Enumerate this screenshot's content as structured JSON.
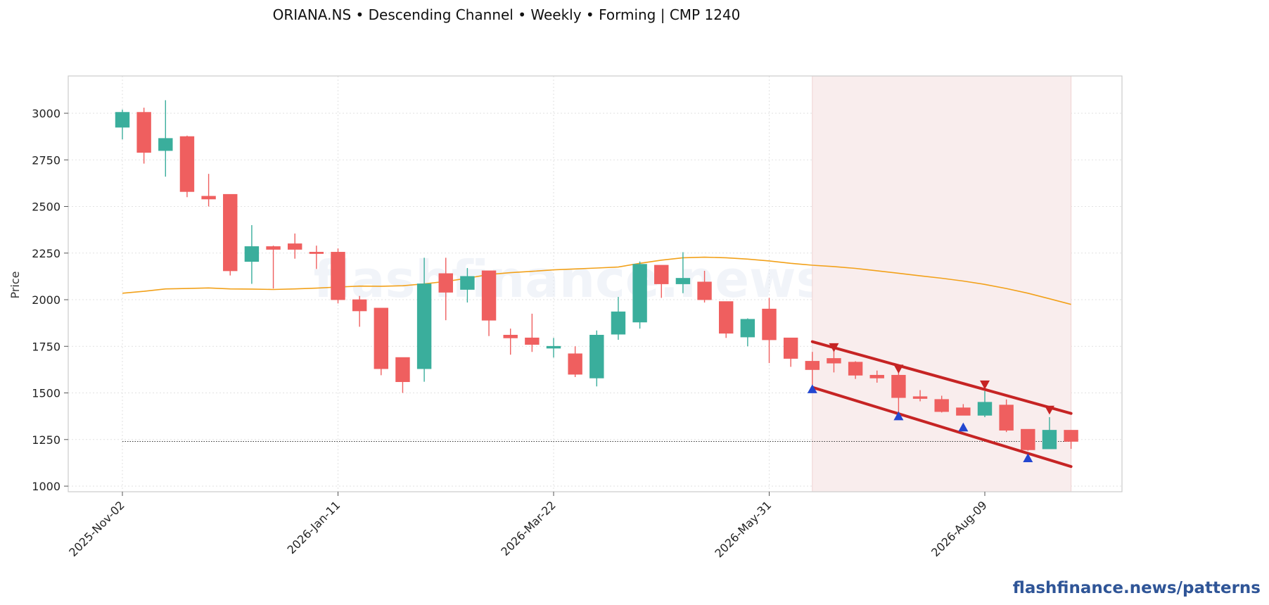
{
  "title": "ORIANA.NS  •  Descending Channel  •  Weekly  •  Forming  |  CMP 1240",
  "watermark": "flashfinance.news",
  "footer": "flashfinance.news/patterns",
  "colors": {
    "up": "#3aae9c",
    "down": "#ef5f5f",
    "ma": "#f2a11a",
    "channel": "#c62424",
    "pivot_high": "#c62424",
    "pivot_low": "#2346d0",
    "highlight": "#f9eded",
    "cmp_line": "#333333"
  },
  "chart_data": {
    "type": "candlestick",
    "ylabel": "Price",
    "xlabel": "",
    "ylim": [
      970,
      3200
    ],
    "yticks": [
      1000,
      1250,
      1500,
      1750,
      2000,
      2250,
      2500,
      2750,
      3000
    ],
    "xticks": [
      "2025-Nov-02",
      "2026-Jan-11",
      "2026-Mar-22",
      "2026-May-31",
      "2026-Aug-09"
    ],
    "xtick_index": [
      0,
      10,
      20,
      30,
      40
    ],
    "grid": true,
    "candles": [
      {
        "date": "2025-Nov-02",
        "open": 2925,
        "high": 3020,
        "low": 2860,
        "close": 3005
      },
      {
        "date": "2025-Nov-09",
        "open": 3005,
        "high": 3030,
        "low": 2730,
        "close": 2790
      },
      {
        "date": "2025-Nov-16",
        "open": 2800,
        "high": 3070,
        "low": 2660,
        "close": 2865
      },
      {
        "date": "2025-Nov-23",
        "open": 2875,
        "high": 2880,
        "low": 2550,
        "close": 2580
      },
      {
        "date": "2025-Nov-30",
        "open": 2555,
        "high": 2675,
        "low": 2500,
        "close": 2540
      },
      {
        "date": "2025-Dec-07",
        "open": 2565,
        "high": 2565,
        "low": 2130,
        "close": 2155
      },
      {
        "date": "2025-Dec-14",
        "open": 2205,
        "high": 2400,
        "low": 2085,
        "close": 2285
      },
      {
        "date": "2025-Dec-21",
        "open": 2285,
        "high": 2290,
        "low": 2060,
        "close": 2270
      },
      {
        "date": "2025-Dec-28",
        "open": 2300,
        "high": 2355,
        "low": 2220,
        "close": 2270
      },
      {
        "date": "2026-Jan-04",
        "open": 2255,
        "high": 2290,
        "low": 2165,
        "close": 2250
      },
      {
        "date": "2026-Jan-11",
        "open": 2255,
        "high": 2275,
        "low": 1980,
        "close": 2000
      },
      {
        "date": "2026-Jan-18",
        "open": 2000,
        "high": 2020,
        "low": 1855,
        "close": 1940
      },
      {
        "date": "2026-Jan-25",
        "open": 1955,
        "high": 1955,
        "low": 1595,
        "close": 1630
      },
      {
        "date": "2026-Feb-01",
        "open": 1690,
        "high": 1690,
        "low": 1500,
        "close": 1560
      },
      {
        "date": "2026-Feb-08",
        "open": 1630,
        "high": 2225,
        "low": 1560,
        "close": 2085
      },
      {
        "date": "2026-Feb-15",
        "open": 2140,
        "high": 2225,
        "low": 1890,
        "close": 2040
      },
      {
        "date": "2026-Feb-22",
        "open": 2055,
        "high": 2170,
        "low": 1985,
        "close": 2125
      },
      {
        "date": "2026-Mar-01",
        "open": 2155,
        "high": 2155,
        "low": 1805,
        "close": 1890
      },
      {
        "date": "2026-Mar-08",
        "open": 1810,
        "high": 1845,
        "low": 1705,
        "close": 1795
      },
      {
        "date": "2026-Mar-15",
        "open": 1795,
        "high": 1925,
        "low": 1720,
        "close": 1760
      },
      {
        "date": "2026-Mar-22",
        "open": 1740,
        "high": 1795,
        "low": 1690,
        "close": 1750
      },
      {
        "date": "2026-Mar-29",
        "open": 1710,
        "high": 1750,
        "low": 1585,
        "close": 1600
      },
      {
        "date": "2026-Apr-05",
        "open": 1580,
        "high": 1835,
        "low": 1535,
        "close": 1810
      },
      {
        "date": "2026-Apr-12",
        "open": 1815,
        "high": 2015,
        "low": 1785,
        "close": 1935
      },
      {
        "date": "2026-Apr-19",
        "open": 1880,
        "high": 2205,
        "low": 1845,
        "close": 2190
      },
      {
        "date": "2026-Apr-26",
        "open": 2185,
        "high": 2185,
        "low": 2010,
        "close": 2085
      },
      {
        "date": "2026-May-03",
        "open": 2085,
        "high": 2255,
        "low": 2035,
        "close": 2115
      },
      {
        "date": "2026-May-10",
        "open": 2095,
        "high": 2155,
        "low": 1985,
        "close": 2000
      },
      {
        "date": "2026-May-17",
        "open": 1990,
        "high": 1990,
        "low": 1795,
        "close": 1820
      },
      {
        "date": "2026-May-24",
        "open": 1800,
        "high": 1900,
        "low": 1750,
        "close": 1895
      },
      {
        "date": "2026-May-31",
        "open": 1950,
        "high": 2010,
        "low": 1660,
        "close": 1785
      },
      {
        "date": "2026-Jun-07",
        "open": 1795,
        "high": 1795,
        "low": 1640,
        "close": 1685
      },
      {
        "date": "2026-Jun-14",
        "open": 1670,
        "high": 1720,
        "low": 1535,
        "close": 1625
      },
      {
        "date": "2026-Jun-21",
        "open": 1685,
        "high": 1730,
        "low": 1610,
        "close": 1660
      },
      {
        "date": "2026-Jun-28",
        "open": 1665,
        "high": 1670,
        "low": 1575,
        "close": 1595
      },
      {
        "date": "2026-Jul-05",
        "open": 1595,
        "high": 1620,
        "low": 1555,
        "close": 1580
      },
      {
        "date": "2026-Jul-12",
        "open": 1595,
        "high": 1620,
        "low": 1380,
        "close": 1475
      },
      {
        "date": "2026-Jul-19",
        "open": 1480,
        "high": 1515,
        "low": 1455,
        "close": 1470
      },
      {
        "date": "2026-Jul-26",
        "open": 1465,
        "high": 1485,
        "low": 1395,
        "close": 1400
      },
      {
        "date": "2026-Aug-02",
        "open": 1420,
        "high": 1440,
        "low": 1380,
        "close": 1380
      },
      {
        "date": "2026-Aug-09",
        "open": 1380,
        "high": 1510,
        "low": 1370,
        "close": 1450
      },
      {
        "date": "2026-Aug-16",
        "open": 1435,
        "high": 1465,
        "low": 1290,
        "close": 1300
      },
      {
        "date": "2026-Aug-23",
        "open": 1305,
        "high": 1305,
        "low": 1190,
        "close": 1195
      },
      {
        "date": "2026-Aug-30",
        "open": 1200,
        "high": 1370,
        "low": 1200,
        "close": 1300
      },
      {
        "date": "2026-Sep-06",
        "open": 1300,
        "high": 1300,
        "low": 1200,
        "close": 1240
      }
    ],
    "moving_average": [
      2035,
      2045,
      2058,
      2060,
      2063,
      2058,
      2057,
      2055,
      2058,
      2062,
      2068,
      2073,
      2072,
      2075,
      2085,
      2098,
      2115,
      2135,
      2145,
      2152,
      2160,
      2165,
      2170,
      2175,
      2195,
      2212,
      2225,
      2228,
      2225,
      2218,
      2208,
      2195,
      2185,
      2178,
      2168,
      2155,
      2142,
      2128,
      2115,
      2100,
      2082,
      2060,
      2035,
      2005,
      1975
    ],
    "highlight_x_range": [
      32,
      44
    ],
    "channel": {
      "upper": {
        "start": {
          "index": 32,
          "value": 1775
        },
        "end": {
          "index": 44,
          "value": 1390
        }
      },
      "lower": {
        "start": {
          "index": 32,
          "value": 1530
        },
        "end": {
          "index": 44,
          "value": 1105
        }
      }
    },
    "pivot_highs": [
      {
        "index": 33,
        "value": 1740
      },
      {
        "index": 36,
        "value": 1625
      },
      {
        "index": 40,
        "value": 1540
      },
      {
        "index": 43,
        "value": 1405
      }
    ],
    "pivot_lows": [
      {
        "index": 32,
        "value": 1525
      },
      {
        "index": 36,
        "value": 1380
      },
      {
        "index": 39,
        "value": 1320
      },
      {
        "index": 42,
        "value": 1155
      }
    ],
    "cmp": 1240,
    "cmp_line_x_range": [
      0,
      44
    ]
  }
}
